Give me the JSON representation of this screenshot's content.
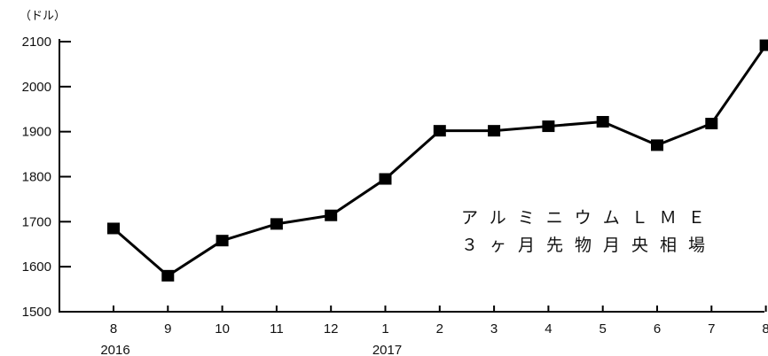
{
  "chart_data": {
    "type": "line",
    "title": "",
    "ylabel_unit": "（ドル）",
    "ylim": [
      1500,
      2100
    ],
    "yticks": [
      1500,
      1600,
      1700,
      1800,
      1900,
      2000,
      2100
    ],
    "categories": [
      "8",
      "9",
      "10",
      "11",
      "12",
      "1",
      "2",
      "3",
      "4",
      "5",
      "6",
      "7",
      "8"
    ],
    "year_labels": [
      {
        "label": "2016",
        "category_index": 0
      },
      {
        "label": "2017",
        "category_index": 5
      }
    ],
    "series": [
      {
        "values": [
          1685,
          1580,
          1658,
          1695,
          1714,
          1795,
          1902,
          1902,
          1912,
          1922,
          1870,
          1918,
          2092
        ]
      }
    ],
    "annotation": [
      "アルミニウムＬＭＥ",
      "３ヶ月先物月央相場"
    ],
    "grid": false,
    "line_color": "#000000",
    "marker": "square"
  }
}
